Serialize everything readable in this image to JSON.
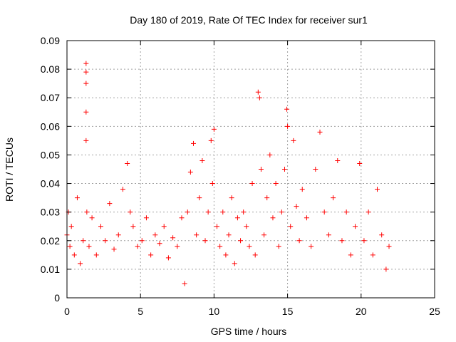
{
  "chart_data": {
    "type": "scatter",
    "title": "Day 180 of 2019, Rate Of TEC Index for receiver sur1",
    "xlabel": "GPS time / hours",
    "ylabel": "ROTI / TECUs",
    "xlim": [
      0,
      25
    ],
    "ylim": [
      0,
      0.09
    ],
    "xticks": [
      0,
      5,
      10,
      15,
      20,
      25
    ],
    "yticks": [
      0,
      0.01,
      0.02,
      0.03,
      0.04,
      0.05,
      0.06,
      0.07,
      0.08,
      0.09
    ],
    "xtick_labels": [
      "0",
      "5",
      "10",
      "15",
      "20",
      "25"
    ],
    "ytick_labels": [
      "0",
      "0.01",
      "0.02",
      "0.03",
      "0.04",
      "0.05",
      "0.06",
      "0.07",
      "0.08",
      "0.09"
    ],
    "grid": true,
    "marker": "plus",
    "color": "#ff0000",
    "series": [
      {
        "x": [
          0.0,
          0.1,
          0.2,
          0.3,
          0.5,
          0.7,
          0.9,
          1.1,
          1.3,
          1.3,
          1.3,
          1.3,
          1.3,
          1.35,
          1.5,
          1.7,
          2.0,
          2.3,
          2.6,
          2.9,
          3.2,
          3.5,
          3.8,
          4.1,
          4.3,
          4.5,
          4.8,
          5.1,
          5.4,
          5.7,
          6.0,
          6.3,
          6.6,
          6.9,
          7.2,
          7.5,
          7.8,
          8.0,
          8.2,
          8.4,
          8.6,
          8.8,
          9.0,
          9.2,
          9.4,
          9.6,
          9.8,
          9.9,
          10.0,
          10.2,
          10.4,
          10.6,
          10.8,
          11.0,
          11.2,
          11.4,
          11.6,
          11.8,
          12.0,
          12.2,
          12.4,
          12.6,
          12.8,
          13.0,
          13.1,
          13.2,
          13.4,
          13.6,
          13.8,
          14.0,
          14.2,
          14.4,
          14.6,
          14.8,
          14.95,
          15.0,
          15.2,
          15.4,
          15.6,
          15.8,
          16.0,
          16.3,
          16.6,
          16.9,
          17.2,
          17.5,
          17.8,
          18.1,
          18.4,
          18.7,
          19.0,
          19.3,
          19.6,
          19.9,
          20.2,
          20.5,
          20.8,
          21.1,
          21.4,
          21.7,
          21.9
        ],
        "y": [
          0.022,
          0.03,
          0.018,
          0.025,
          0.015,
          0.035,
          0.012,
          0.02,
          0.082,
          0.079,
          0.075,
          0.065,
          0.055,
          0.03,
          0.018,
          0.028,
          0.015,
          0.025,
          0.02,
          0.033,
          0.017,
          0.022,
          0.038,
          0.047,
          0.03,
          0.025,
          0.018,
          0.02,
          0.028,
          0.015,
          0.022,
          0.019,
          0.025,
          0.014,
          0.021,
          0.018,
          0.028,
          0.005,
          0.03,
          0.044,
          0.054,
          0.022,
          0.035,
          0.048,
          0.02,
          0.03,
          0.055,
          0.04,
          0.059,
          0.025,
          0.018,
          0.03,
          0.015,
          0.022,
          0.035,
          0.012,
          0.028,
          0.02,
          0.03,
          0.025,
          0.018,
          0.04,
          0.015,
          0.072,
          0.07,
          0.045,
          0.022,
          0.035,
          0.05,
          0.028,
          0.04,
          0.018,
          0.03,
          0.045,
          0.066,
          0.06,
          0.025,
          0.055,
          0.032,
          0.02,
          0.038,
          0.028,
          0.018,
          0.045,
          0.058,
          0.03,
          0.022,
          0.035,
          0.048,
          0.02,
          0.03,
          0.015,
          0.025,
          0.047,
          0.02,
          0.03,
          0.015,
          0.038,
          0.022,
          0.01,
          0.018
        ]
      }
    ]
  }
}
